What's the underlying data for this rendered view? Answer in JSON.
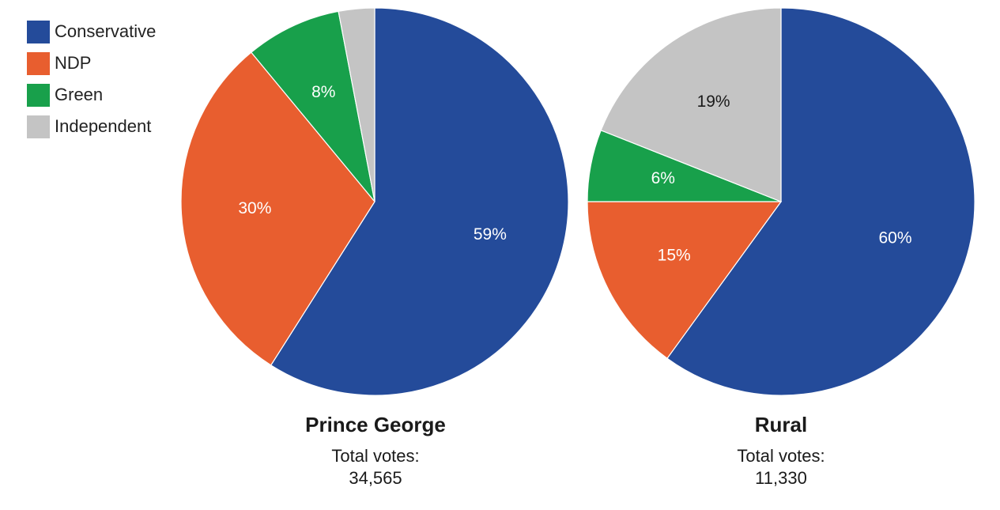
{
  "legend": [
    {
      "label": "Conservative",
      "color": "#244b9a"
    },
    {
      "label": "NDP",
      "color": "#e85e2f"
    },
    {
      "label": "Green",
      "color": "#18a04b"
    },
    {
      "label": "Independent",
      "color": "#c4c4c4"
    }
  ],
  "chart_data": [
    {
      "type": "pie",
      "title": "Prince George",
      "subtitle": "Total votes:",
      "total": "34,565",
      "slices": [
        {
          "name": "Conservative",
          "value": 59,
          "label": "59%",
          "color": "#244b9a",
          "label_color": "#ffffff"
        },
        {
          "name": "NDP",
          "value": 30,
          "label": "30%",
          "color": "#e85e2f",
          "label_color": "#ffffff"
        },
        {
          "name": "Green",
          "value": 8,
          "label": "8%",
          "color": "#18a04b",
          "label_color": "#ffffff"
        },
        {
          "name": "Independent",
          "value": 3,
          "label": "",
          "color": "#c4c4c4",
          "label_color": "#1a1a1a"
        }
      ]
    },
    {
      "type": "pie",
      "title": "Rural",
      "subtitle": "Total votes:",
      "total": "11,330",
      "slices": [
        {
          "name": "Conservative",
          "value": 60,
          "label": "60%",
          "color": "#244b9a",
          "label_color": "#ffffff"
        },
        {
          "name": "NDP",
          "value": 15,
          "label": "15%",
          "color": "#e85e2f",
          "label_color": "#ffffff"
        },
        {
          "name": "Green",
          "value": 6,
          "label": "6%",
          "color": "#18a04b",
          "label_color": "#ffffff"
        },
        {
          "name": "Independent",
          "value": 19,
          "label": "19%",
          "color": "#c4c4c4",
          "label_color": "#1a1a1a"
        }
      ]
    }
  ]
}
